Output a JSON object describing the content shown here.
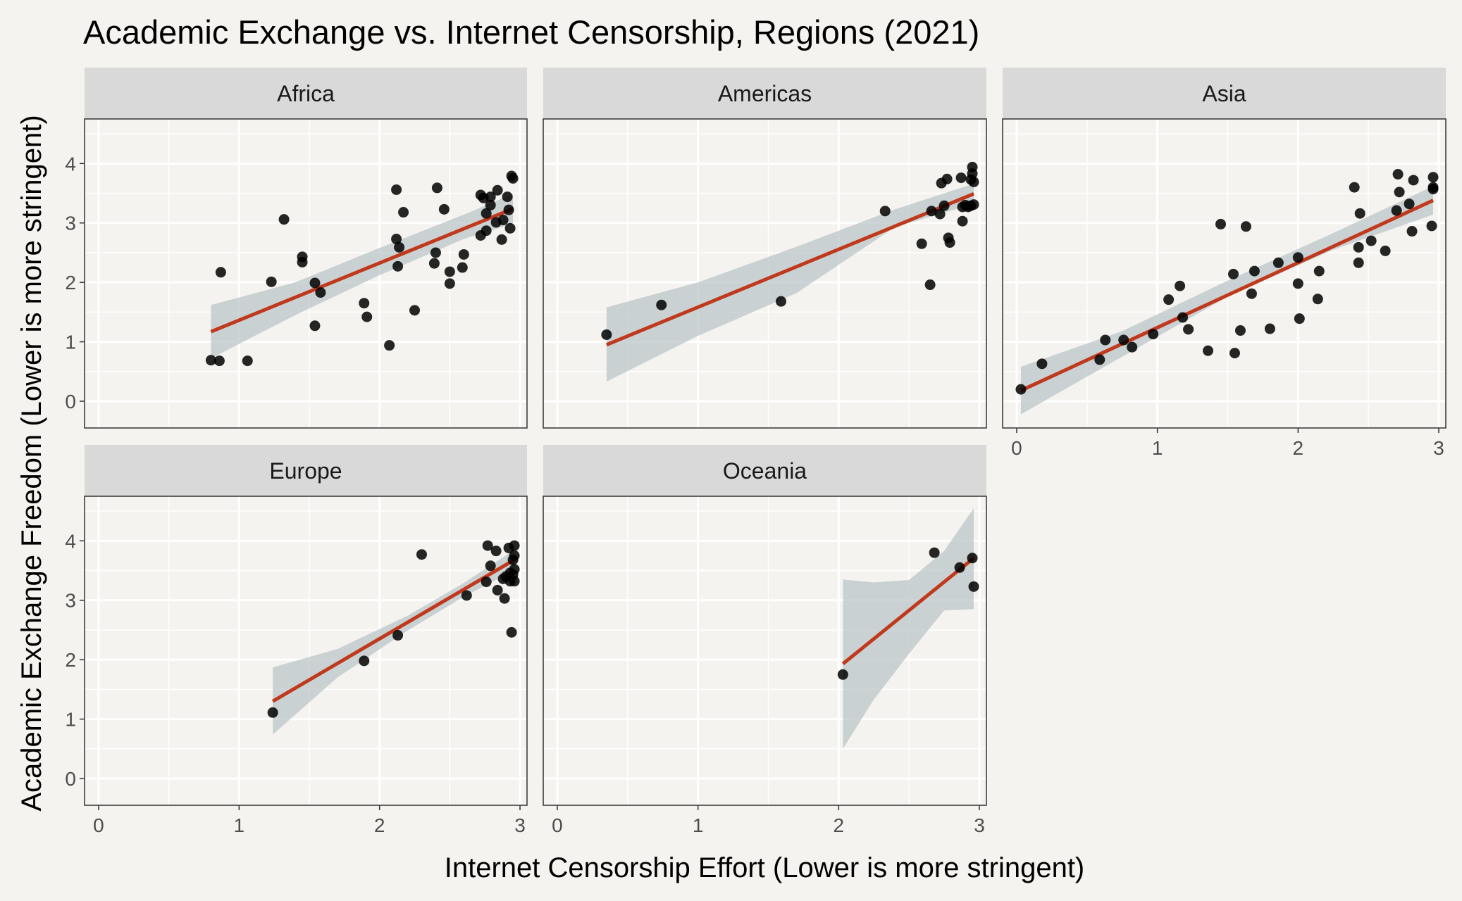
{
  "colors": {
    "background": "#f5f3ef",
    "panel_background": "#f5f3ef",
    "grid_major": "#ffffff",
    "grid_minor": "#ffffff",
    "strip_fill": "#d9d9d9",
    "point": "#000000",
    "fit_line": "#c0391d",
    "ribbon": "#b8c4c6"
  },
  "chart_data": {
    "type": "scatter",
    "title": "Academic Exchange vs. Internet Censorship, Regions (2021)",
    "xlabel": "Internet Censorship Effort (Lower is more stringent)",
    "ylabel": "Academic Exchange Freedom (Lower is more stringent)",
    "xlim": [
      -0.1,
      3.05
    ],
    "ylim": [
      -0.45,
      4.75
    ],
    "x_ticks": [
      0,
      1,
      2,
      3
    ],
    "y_ticks": [
      0,
      1,
      2,
      3,
      4
    ],
    "x_tick_labels": [
      "0",
      "1",
      "2",
      "3"
    ],
    "y_tick_labels": [
      "0",
      "1",
      "2",
      "3",
      "4"
    ],
    "grid": true,
    "overlay": "linear fit with 95% confidence band",
    "facets": [
      {
        "name": "Africa",
        "points": [
          [
            0.8,
            0.69
          ],
          [
            0.86,
            0.68
          ],
          [
            0.87,
            2.17
          ],
          [
            1.06,
            0.68
          ],
          [
            1.23,
            2.01
          ],
          [
            1.32,
            3.06
          ],
          [
            1.45,
            2.43
          ],
          [
            1.45,
            2.34
          ],
          [
            1.54,
            1.99
          ],
          [
            1.54,
            1.27
          ],
          [
            1.58,
            1.83
          ],
          [
            1.89,
            1.65
          ],
          [
            1.91,
            1.42
          ],
          [
            2.07,
            0.94
          ],
          [
            2.12,
            3.56
          ],
          [
            2.12,
            2.73
          ],
          [
            2.13,
            2.27
          ],
          [
            2.14,
            2.59
          ],
          [
            2.17,
            3.18
          ],
          [
            2.25,
            1.53
          ],
          [
            2.39,
            2.32
          ],
          [
            2.4,
            2.5
          ],
          [
            2.41,
            3.59
          ],
          [
            2.46,
            3.23
          ],
          [
            2.5,
            1.98
          ],
          [
            2.5,
            2.18
          ],
          [
            2.59,
            2.25
          ],
          [
            2.6,
            2.47
          ],
          [
            2.72,
            3.47
          ],
          [
            2.72,
            2.79
          ],
          [
            2.74,
            3.42
          ],
          [
            2.76,
            3.16
          ],
          [
            2.76,
            2.87
          ],
          [
            2.79,
            3.3
          ],
          [
            2.79,
            3.44
          ],
          [
            2.83,
            3.01
          ],
          [
            2.84,
            3.55
          ],
          [
            2.87,
            2.72
          ],
          [
            2.88,
            3.05
          ],
          [
            2.91,
            3.44
          ],
          [
            2.92,
            3.22
          ],
          [
            2.93,
            2.91
          ],
          [
            2.94,
            3.79
          ],
          [
            2.95,
            3.75
          ]
        ],
        "fit": {
          "x": [
            0.8,
            2.95
          ],
          "y": [
            1.17,
            3.24
          ]
        },
        "band": {
          "x": [
            0.8,
            1.4,
            2.0,
            2.6,
            2.95
          ],
          "upper": [
            1.62,
            2.0,
            2.58,
            3.14,
            3.49
          ],
          "lower": [
            0.72,
            1.45,
            2.12,
            2.73,
            2.99
          ]
        }
      },
      {
        "name": "Americas",
        "points": [
          [
            0.35,
            1.12
          ],
          [
            0.74,
            1.62
          ],
          [
            1.59,
            1.68
          ],
          [
            2.33,
            3.2
          ],
          [
            2.59,
            2.65
          ],
          [
            2.65,
            1.96
          ],
          [
            2.66,
            3.2
          ],
          [
            2.72,
            3.15
          ],
          [
            2.73,
            3.67
          ],
          [
            2.75,
            3.29
          ],
          [
            2.77,
            3.74
          ],
          [
            2.78,
            2.75
          ],
          [
            2.79,
            2.67
          ],
          [
            2.87,
            3.76
          ],
          [
            2.88,
            3.27
          ],
          [
            2.88,
            3.03
          ],
          [
            2.9,
            3.3
          ],
          [
            2.92,
            3.27
          ],
          [
            2.94,
            3.29
          ],
          [
            2.94,
            3.73
          ],
          [
            2.95,
            3.83
          ],
          [
            2.95,
            3.94
          ],
          [
            2.96,
            3.69
          ],
          [
            2.96,
            3.31
          ]
        ],
        "fit": {
          "x": [
            0.35,
            2.96
          ],
          "y": [
            0.95,
            3.49
          ]
        },
        "band": {
          "x": [
            0.35,
            1.0,
            1.7,
            2.4,
            2.96
          ],
          "upper": [
            1.58,
            2.0,
            2.6,
            3.23,
            3.66
          ],
          "lower": [
            0.33,
            1.1,
            1.82,
            2.93,
            3.32
          ]
        }
      },
      {
        "name": "Asia",
        "points": [
          [
            0.03,
            0.2
          ],
          [
            0.18,
            0.63
          ],
          [
            0.59,
            0.7
          ],
          [
            0.63,
            1.03
          ],
          [
            0.76,
            1.03
          ],
          [
            0.82,
            0.91
          ],
          [
            0.97,
            1.13
          ],
          [
            1.08,
            1.71
          ],
          [
            1.16,
            1.94
          ],
          [
            1.18,
            1.41
          ],
          [
            1.22,
            1.21
          ],
          [
            1.36,
            0.85
          ],
          [
            1.45,
            2.98
          ],
          [
            1.54,
            2.14
          ],
          [
            1.55,
            0.81
          ],
          [
            1.59,
            1.19
          ],
          [
            1.63,
            2.94
          ],
          [
            1.67,
            1.81
          ],
          [
            1.69,
            2.19
          ],
          [
            1.8,
            1.22
          ],
          [
            1.86,
            2.33
          ],
          [
            2.0,
            1.98
          ],
          [
            2.0,
            2.42
          ],
          [
            2.01,
            1.39
          ],
          [
            2.14,
            1.72
          ],
          [
            2.15,
            2.19
          ],
          [
            2.4,
            3.6
          ],
          [
            2.43,
            2.59
          ],
          [
            2.43,
            2.33
          ],
          [
            2.44,
            3.16
          ],
          [
            2.52,
            2.7
          ],
          [
            2.62,
            2.53
          ],
          [
            2.7,
            3.21
          ],
          [
            2.71,
            3.82
          ],
          [
            2.72,
            3.52
          ],
          [
            2.79,
            3.32
          ],
          [
            2.81,
            2.86
          ],
          [
            2.82,
            3.72
          ],
          [
            2.95,
            2.95
          ],
          [
            2.96,
            3.6
          ],
          [
            2.96,
            3.77
          ],
          [
            2.96,
            3.57
          ]
        ],
        "fit": {
          "x": [
            0.03,
            2.96
          ],
          "y": [
            0.18,
            3.38
          ]
        },
        "band": {
          "x": [
            0.03,
            0.75,
            1.5,
            2.25,
            2.96
          ],
          "upper": [
            0.58,
            1.18,
            2.03,
            2.83,
            3.62
          ],
          "lower": [
            -0.22,
            0.75,
            1.76,
            2.55,
            3.14
          ]
        }
      },
      {
        "name": "Europe",
        "points": [
          [
            1.24,
            1.11
          ],
          [
            1.89,
            1.98
          ],
          [
            2.13,
            2.41
          ],
          [
            2.3,
            3.77
          ],
          [
            2.62,
            3.08
          ],
          [
            2.76,
            3.31
          ],
          [
            2.77,
            3.92
          ],
          [
            2.79,
            3.58
          ],
          [
            2.83,
            3.83
          ],
          [
            2.84,
            3.17
          ],
          [
            2.88,
            3.36
          ],
          [
            2.89,
            3.03
          ],
          [
            2.9,
            3.4
          ],
          [
            2.92,
            3.88
          ],
          [
            2.93,
            3.46
          ],
          [
            2.93,
            3.32
          ],
          [
            2.94,
            2.46
          ],
          [
            2.95,
            3.43
          ],
          [
            2.95,
            3.68
          ],
          [
            2.96,
            3.92
          ],
          [
            2.96,
            3.52
          ],
          [
            2.96,
            3.75
          ],
          [
            2.96,
            3.32
          ]
        ],
        "fit": {
          "x": [
            1.24,
            2.96
          ],
          "y": [
            1.3,
            3.68
          ]
        },
        "band": {
          "x": [
            1.24,
            1.7,
            2.2,
            2.6,
            2.96
          ],
          "upper": [
            1.87,
            2.18,
            2.74,
            3.29,
            3.85
          ],
          "lower": [
            0.74,
            1.7,
            2.49,
            3.06,
            3.5
          ]
        }
      },
      {
        "name": "Oceania",
        "points": [
          [
            2.03,
            1.75
          ],
          [
            2.68,
            3.8
          ],
          [
            2.86,
            3.55
          ],
          [
            2.95,
            3.71
          ],
          [
            2.96,
            3.23
          ]
        ],
        "fit": {
          "x": [
            2.03,
            2.96
          ],
          "y": [
            1.93,
            3.71
          ]
        },
        "band": {
          "x": [
            2.03,
            2.25,
            2.5,
            2.75,
            2.96
          ],
          "upper": [
            3.35,
            3.3,
            3.34,
            3.83,
            4.55
          ],
          "lower": [
            0.5,
            1.33,
            2.1,
            2.83,
            2.85
          ]
        }
      }
    ]
  }
}
